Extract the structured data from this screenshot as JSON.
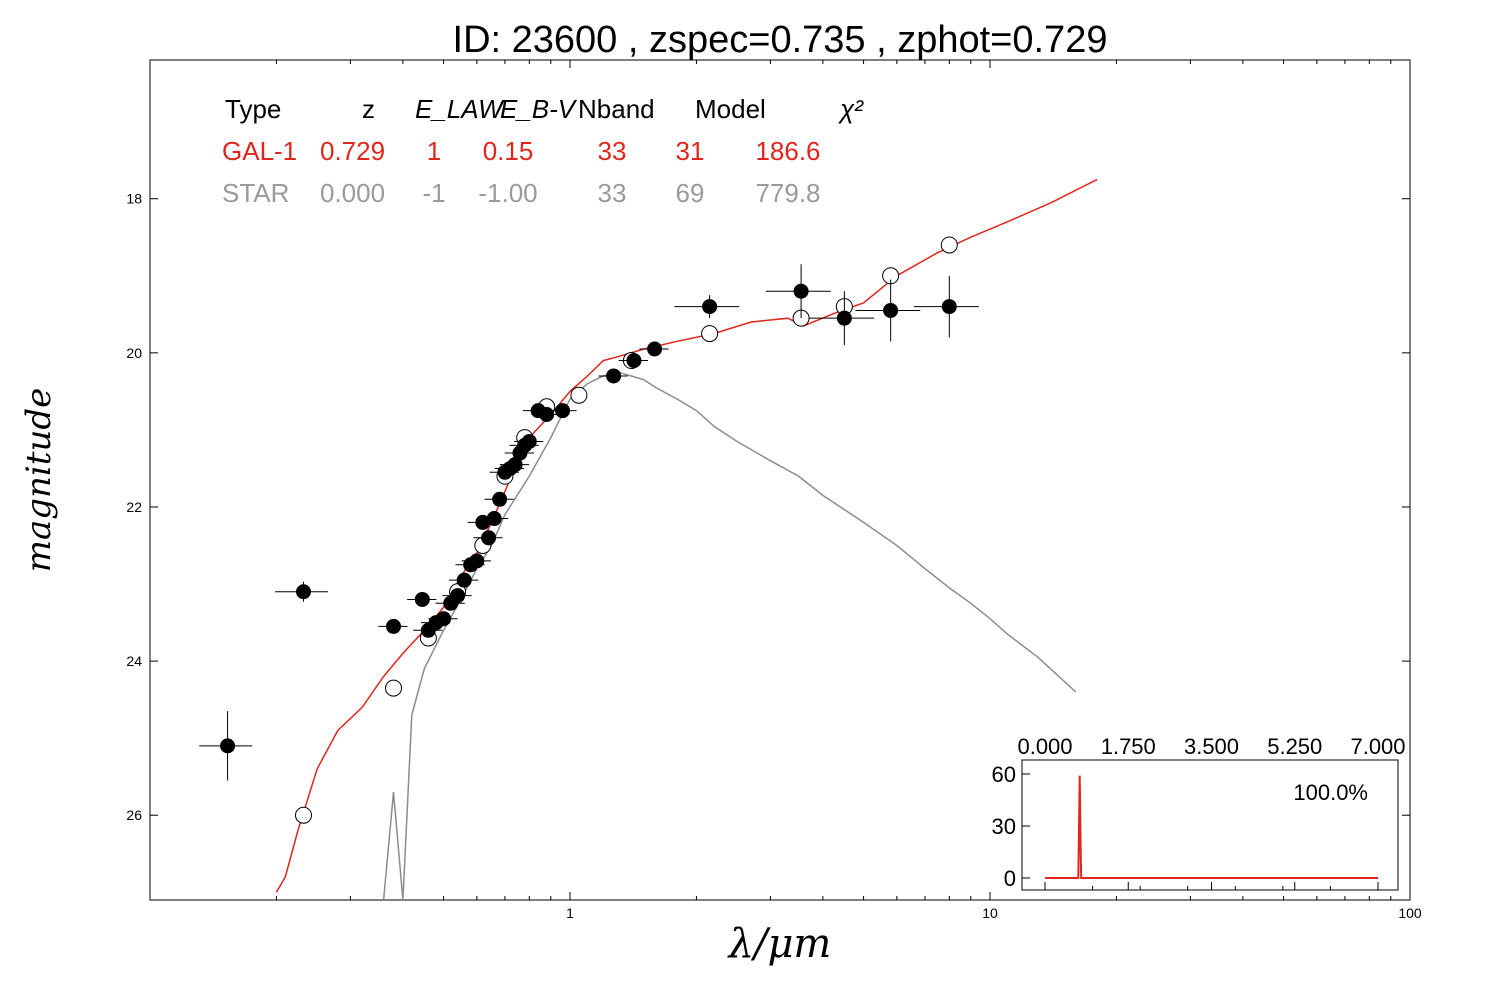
{
  "title": "ID:  23600 , zspec=0.735 , zphot=0.729",
  "colors": {
    "galaxy": "#e0261c",
    "star": "#8c8c8c",
    "detected": "#000000",
    "model": "#ffffff"
  },
  "table": {
    "headers": [
      "Type",
      "z",
      "E_LAW",
      "E_B-V",
      "Nband",
      "Model",
      "χ²"
    ],
    "rows": [
      {
        "type": "GAL-1",
        "z": "0.729",
        "elaw": "1",
        "ebv": "0.15",
        "nband": "33",
        "model": "31",
        "chi2": "186.6"
      },
      {
        "type": "STAR",
        "z": "0.000",
        "elaw": "-1",
        "ebv": "-1.00",
        "nband": "33",
        "model": "69",
        "chi2": "779.8"
      }
    ]
  },
  "chart_data": [
    {
      "type": "line+scatter",
      "xlabel": "λ/μm",
      "ylabel": "magnitude",
      "xscale": "log",
      "xlim": [
        0.1,
        100
      ],
      "ylim": [
        27.1,
        16.2
      ],
      "yticks": [
        18,
        20,
        22,
        24,
        26
      ],
      "xticks": [
        1,
        10,
        100
      ],
      "series": [
        {
          "kind": "line",
          "x": [
            0.2,
            0.21,
            0.225,
            0.25,
            0.28,
            0.32,
            0.36,
            0.4,
            0.45,
            0.5,
            0.55,
            0.6,
            0.65,
            0.7,
            0.75,
            0.8,
            0.9,
            1.0,
            1.1,
            1.2,
            1.3,
            1.5,
            1.8,
            2.2,
            2.7,
            3.3,
            3.6,
            4.2,
            5.0,
            6.0,
            7.5,
            9.0,
            11.0,
            14.0,
            18.0
          ],
          "y": [
            27.0,
            26.8,
            26.2,
            25.4,
            24.9,
            24.6,
            24.2,
            23.9,
            23.6,
            23.3,
            22.9,
            22.6,
            22.2,
            21.8,
            21.4,
            21.1,
            20.8,
            20.5,
            20.3,
            20.1,
            20.05,
            19.95,
            19.85,
            19.75,
            19.6,
            19.55,
            19.65,
            19.5,
            19.35,
            19.0,
            18.7,
            18.5,
            18.3,
            18.05,
            17.75
          ]
        },
        {
          "kind": "line",
          "x": [
            0.36,
            0.38,
            0.4,
            0.42,
            0.45,
            0.5,
            0.55,
            0.6,
            0.65,
            0.7,
            0.8,
            0.9,
            1.0,
            1.1,
            1.2,
            1.3,
            1.4,
            1.5,
            1.6,
            1.8,
            2.0,
            2.2,
            2.5,
            3.0,
            3.5,
            4.0,
            5.0,
            6.0,
            7.0,
            8.0,
            9.0,
            10.0,
            11.0,
            13.0,
            16.0
          ],
          "y": [
            27.1,
            25.7,
            27.1,
            24.7,
            24.1,
            23.6,
            23.2,
            22.8,
            22.5,
            22.1,
            21.6,
            21.1,
            20.6,
            20.4,
            20.3,
            20.25,
            20.3,
            20.35,
            20.45,
            20.6,
            20.75,
            20.95,
            21.15,
            21.4,
            21.6,
            21.85,
            22.2,
            22.5,
            22.8,
            23.05,
            23.25,
            23.45,
            23.65,
            23.95,
            24.4
          ]
        },
        {
          "kind": "points-filled",
          "x": [
            0.153,
            0.232,
            0.38,
            0.445,
            0.46,
            0.48,
            0.5,
            0.52,
            0.54,
            0.56,
            0.58,
            0.6,
            0.62,
            0.64,
            0.66,
            0.68,
            0.7,
            0.72,
            0.74,
            0.76,
            0.78,
            0.8,
            0.84,
            0.88,
            0.96,
            1.27,
            1.42,
            1.59,
            2.15,
            3.55,
            4.5,
            5.8,
            8.0
          ],
          "y": [
            25.1,
            23.1,
            23.55,
            23.2,
            23.6,
            23.5,
            23.45,
            23.25,
            23.15,
            22.95,
            22.75,
            22.7,
            22.2,
            22.4,
            22.15,
            21.9,
            21.55,
            21.5,
            21.45,
            21.3,
            21.2,
            21.15,
            20.75,
            20.8,
            20.75,
            20.3,
            20.1,
            19.95,
            19.4,
            19.2,
            19.55,
            19.45,
            19.4
          ],
          "yerr": [
            0.45,
            0.13,
            0.06,
            0.05,
            0.07,
            0.06,
            0.06,
            0.05,
            0.05,
            0.05,
            0.05,
            0.05,
            0.05,
            0.05,
            0.05,
            0.06,
            0.05,
            0.05,
            0.05,
            0.05,
            0.05,
            0.05,
            0.05,
            0.05,
            0.05,
            0.05,
            0.05,
            0.05,
            0.15,
            0.35,
            0.35,
            0.4,
            0.4
          ]
        },
        {
          "kind": "points-open",
          "x": [
            0.232,
            0.38,
            0.46,
            0.54,
            0.62,
            0.7,
            0.78,
            0.88,
            1.05,
            1.4,
            2.15,
            3.55,
            4.5,
            5.8,
            8.0
          ],
          "y": [
            26.0,
            24.35,
            23.7,
            23.1,
            22.5,
            21.6,
            21.1,
            20.7,
            20.55,
            20.1,
            19.75,
            19.55,
            19.4,
            19.0,
            18.6
          ]
        }
      ]
    },
    {
      "type": "line",
      "xlim": [
        0,
        7
      ],
      "ylim": [
        -3,
        68
      ],
      "xticks": [
        "0.000",
        "1.750",
        "3.500",
        "5.250",
        "7.000"
      ],
      "yticks": [
        "0",
        "30",
        "60"
      ],
      "annotation": "100.0%",
      "series": [
        {
          "x": [
            0,
            0.7,
            0.71,
            0.729,
            0.75,
            0.76,
            7.0
          ],
          "y": [
            0,
            0,
            20,
            59,
            15,
            0,
            0
          ]
        }
      ]
    }
  ]
}
